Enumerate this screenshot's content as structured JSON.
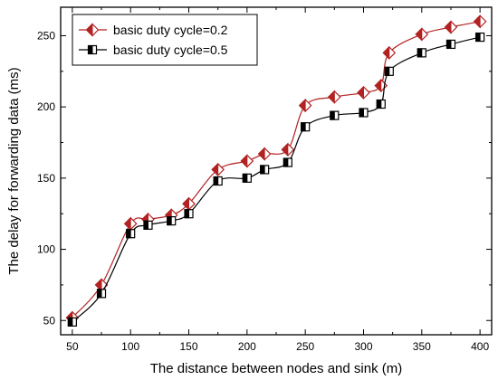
{
  "chart_data": {
    "type": "line",
    "x": [
      50,
      75,
      100,
      115,
      135,
      150,
      175,
      200,
      215,
      235,
      250,
      275,
      300,
      315,
      322,
      350,
      375,
      400
    ],
    "series": [
      {
        "name": "basic duty cycle=0.2",
        "values": [
          52,
          75,
          118,
          121,
          124,
          132,
          156,
          162,
          167,
          170,
          201,
          207,
          210,
          215,
          238,
          251,
          256,
          260
        ],
        "color": "#b22222",
        "marker": "diamond-half"
      },
      {
        "name": "basic duty cycle=0.5",
        "values": [
          49,
          69,
          111,
          117,
          120,
          125,
          148,
          150,
          156,
          161,
          186,
          194,
          196,
          202,
          225,
          238,
          244,
          249
        ],
        "color": "#000000",
        "marker": "square-half"
      }
    ],
    "xlabel": "The distance between nodes and sink (m)",
    "ylabel": "The delay for forwarding data (ms)",
    "xlim": [
      40,
      410
    ],
    "ylim": [
      40,
      270
    ],
    "xticks": [
      50,
      100,
      150,
      200,
      250,
      300,
      350,
      400
    ],
    "xticks_minor": [
      75,
      125,
      175,
      225,
      275,
      325,
      375
    ],
    "yticks": [
      50,
      100,
      150,
      200,
      250
    ],
    "yticks_minor": [
      75,
      125,
      175,
      225
    ],
    "grid": false,
    "legend_position": "top-left"
  }
}
